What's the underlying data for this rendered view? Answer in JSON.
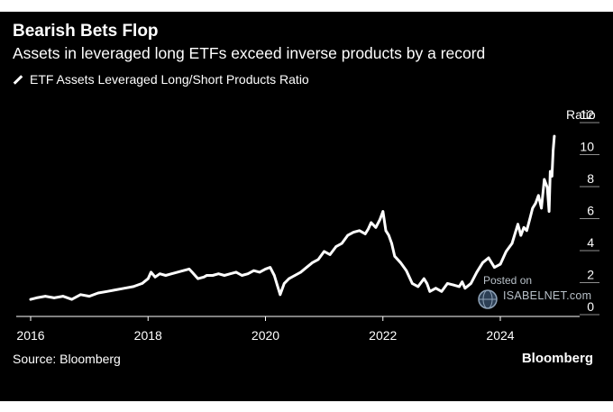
{
  "header": {
    "title": "Bearish Bets Flop",
    "subtitle": "Assets in leveraged long ETFs exceed inverse products by a record"
  },
  "legend": {
    "label": "ETF Assets Leveraged Long/Short Products Ratio"
  },
  "footer": {
    "source": "Source: Bloomberg",
    "brand": "Bloomberg"
  },
  "watermark": {
    "posted": "Posted on",
    "site": "ISABELNET.com"
  },
  "colors": {
    "background": "#000000",
    "line": "#ffffff",
    "axis": "#ffffff"
  },
  "chart_data": {
    "type": "line",
    "title": "Bearish Bets Flop",
    "subtitle": "Assets in leveraged long ETFs exceed inverse products by a record",
    "ylabel": "Ratio",
    "ylim": [
      0,
      12
    ],
    "xlim": [
      2016.0,
      2025.0
    ],
    "y_ticks": [
      0,
      2,
      4,
      6,
      8,
      10,
      12
    ],
    "y_tick_labels": [
      "0",
      "2",
      "4",
      "6",
      "8",
      "10",
      "12"
    ],
    "x_ticks": [
      2016,
      2018,
      2020,
      2022,
      2024
    ],
    "x_tick_labels": [
      "2016",
      "2018",
      "2020",
      "2022",
      "2024"
    ],
    "grid": false,
    "legend_position": "top-left",
    "series": [
      {
        "name": "ETF Assets Leveraged Long/Short Products Ratio",
        "x": [
          2016.0,
          2016.1,
          2016.25,
          2016.4,
          2016.55,
          2016.7,
          2016.85,
          2017.0,
          2017.15,
          2017.3,
          2017.45,
          2017.6,
          2017.75,
          2017.9,
          2018.0,
          2018.05,
          2018.12,
          2018.2,
          2018.3,
          2018.4,
          2018.5,
          2018.6,
          2018.7,
          2018.75,
          2018.85,
          2018.95,
          2019.0,
          2019.1,
          2019.2,
          2019.3,
          2019.4,
          2019.5,
          2019.6,
          2019.7,
          2019.8,
          2019.9,
          2020.0,
          2020.08,
          2020.15,
          2020.2,
          2020.25,
          2020.32,
          2020.4,
          2020.5,
          2020.6,
          2020.7,
          2020.8,
          2020.9,
          2021.0,
          2021.1,
          2021.2,
          2021.3,
          2021.4,
          2021.5,
          2021.6,
          2021.7,
          2021.75,
          2021.8,
          2021.88,
          2021.95,
          2022.0,
          2022.05,
          2022.1,
          2022.15,
          2022.2,
          2022.3,
          2022.4,
          2022.5,
          2022.6,
          2022.7,
          2022.75,
          2022.8,
          2022.9,
          2023.0,
          2023.1,
          2023.2,
          2023.3,
          2023.35,
          2023.4,
          2023.5,
          2023.6,
          2023.7,
          2023.8,
          2023.9,
          2024.0,
          2024.1,
          2024.2,
          2024.3,
          2024.35,
          2024.4,
          2024.45,
          2024.5,
          2024.55,
          2024.6,
          2024.65,
          2024.7,
          2024.75,
          2024.8,
          2024.83,
          2024.85,
          2024.88,
          2024.9,
          2024.92
        ],
        "values": [
          0.5,
          0.6,
          0.7,
          0.6,
          0.7,
          0.5,
          0.8,
          0.7,
          0.9,
          1.0,
          1.1,
          1.2,
          1.3,
          1.5,
          1.8,
          2.2,
          1.9,
          2.1,
          2.0,
          2.1,
          2.2,
          2.3,
          2.4,
          2.2,
          1.8,
          1.9,
          2.0,
          2.0,
          2.1,
          2.0,
          2.1,
          2.2,
          2.0,
          2.1,
          2.3,
          2.2,
          2.4,
          2.5,
          2.0,
          1.4,
          0.8,
          1.5,
          1.8,
          2.0,
          2.2,
          2.5,
          2.8,
          3.0,
          3.5,
          3.3,
          3.8,
          4.0,
          4.5,
          4.7,
          4.8,
          4.6,
          4.9,
          5.3,
          5.0,
          5.5,
          6.0,
          4.8,
          4.5,
          4.0,
          3.2,
          2.8,
          2.3,
          1.5,
          1.3,
          1.8,
          1.5,
          1.0,
          1.2,
          1.0,
          1.5,
          1.4,
          1.3,
          1.6,
          1.2,
          1.5,
          2.2,
          2.8,
          3.1,
          2.5,
          2.7,
          3.5,
          4.0,
          5.2,
          4.5,
          5.0,
          4.8,
          5.5,
          6.2,
          6.5,
          7.0,
          6.2,
          8.0,
          7.5,
          6.0,
          8.5,
          8.2,
          9.8,
          10.7
        ]
      }
    ]
  }
}
